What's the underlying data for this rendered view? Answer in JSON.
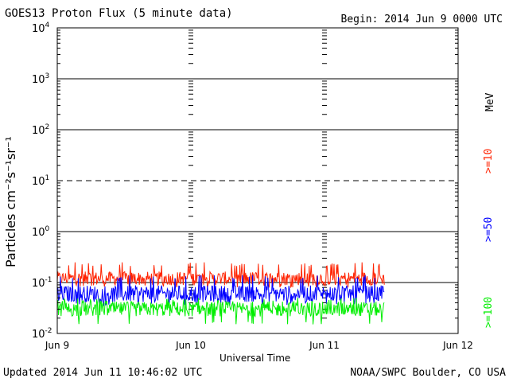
{
  "header": {
    "title": "GOES13 Proton Flux (5 minute data)",
    "begin": "Begin: 2014 Jun 9 0000 UTC"
  },
  "footer": {
    "updated": "Updated 2014 Jun 11 10:46:02 UTC",
    "source": "NOAA/SWPC Boulder, CO USA"
  },
  "chart_data": {
    "type": "line",
    "title": "GOES13 Proton Flux (5 minute data)",
    "xlabel": "Universal Time",
    "ylabel": "Particles cm⁻²s⁻¹sr⁻¹",
    "yscale": "log",
    "ylim": [
      0.01,
      10000
    ],
    "xlim": [
      "2014-06-09 00:00",
      "2014-06-12 00:00"
    ],
    "x_ticks": [
      "Jun 9",
      "Jun 10",
      "Jun 11",
      "Jun 12"
    ],
    "y_ticks": [
      {
        "base": "10",
        "exp": "-2"
      },
      {
        "base": "10",
        "exp": "-1"
      },
      {
        "base": "10",
        "exp": "0"
      },
      {
        "base": "10",
        "exp": "1"
      },
      {
        "base": "10",
        "exp": "2"
      },
      {
        "base": "10",
        "exp": "3"
      },
      {
        "base": "10",
        "exp": "4"
      }
    ],
    "grid": true,
    "unit_label": "MeV",
    "series": [
      {
        "name": ">=10",
        "color": "#ff2200",
        "typical": 0.12,
        "min": 0.08,
        "max": 0.25
      },
      {
        "name": ">=50",
        "color": "#0000ff",
        "typical": 0.06,
        "min": 0.035,
        "max": 0.14
      },
      {
        "name": ">=100",
        "color": "#00ee00",
        "typical": 0.03,
        "min": 0.015,
        "max": 0.05
      }
    ],
    "data_end": "2014-06-11 10:46"
  }
}
